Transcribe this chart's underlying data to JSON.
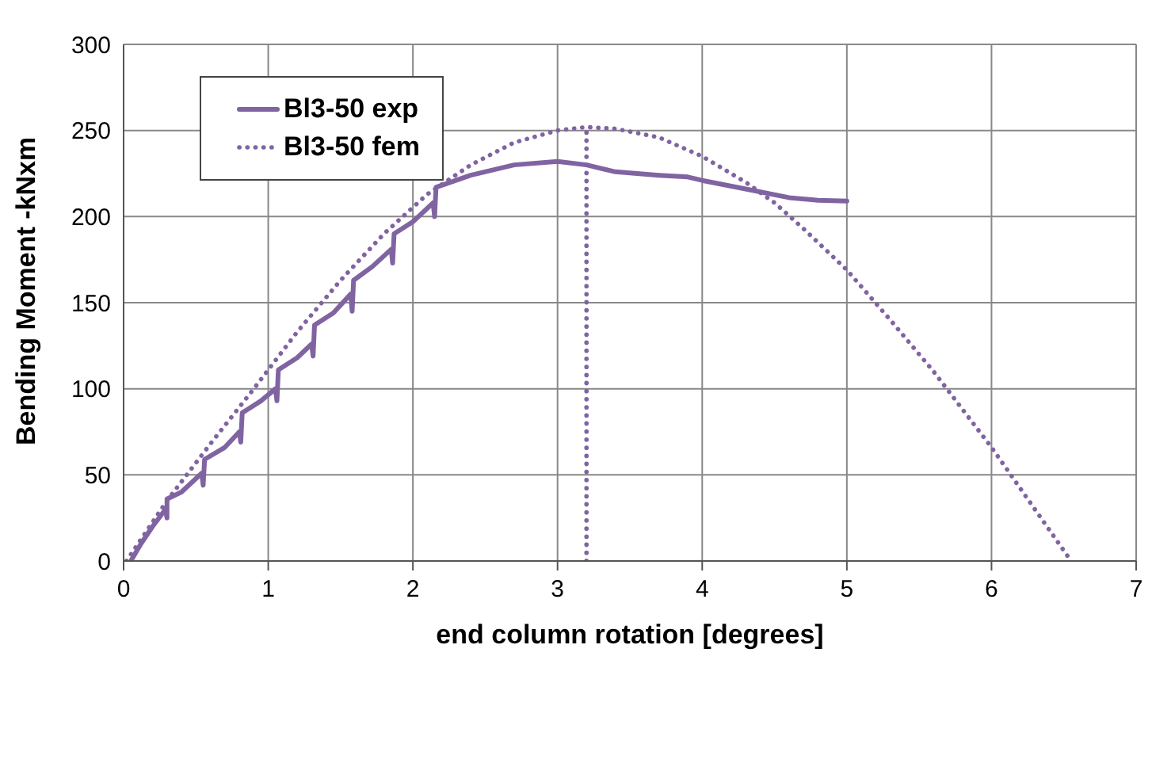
{
  "chart_data": {
    "type": "line",
    "xlabel": "end column rotation [degrees]",
    "ylabel": "Bending Moment -kNxm",
    "xlim": [
      0,
      7
    ],
    "xticks": [
      0,
      1,
      2,
      3,
      4,
      5,
      6,
      7
    ],
    "ylim": [
      0,
      300
    ],
    "yticks": [
      0,
      50,
      100,
      150,
      200,
      250,
      300
    ],
    "grid": true,
    "legend": "top left",
    "marker": "none",
    "series": [
      {
        "name": "Bl3-50 exp",
        "color": "#8064a2",
        "line_style": "solid",
        "x": [
          0.05,
          0.12,
          0.2,
          0.29,
          0.3,
          0.3,
          0.4,
          0.54,
          0.55,
          0.56,
          0.7,
          0.8,
          0.81,
          0.82,
          0.95,
          1.05,
          1.06,
          1.07,
          1.2,
          1.3,
          1.31,
          1.32,
          1.45,
          1.57,
          1.58,
          1.59,
          1.72,
          1.85,
          1.86,
          1.87,
          2.0,
          2.14,
          2.15,
          2.16,
          2.4,
          2.7,
          3.0,
          3.2,
          3.4,
          3.7,
          3.9,
          4.0,
          4.3,
          4.6,
          4.8,
          5.0
        ],
        "values": [
          0,
          10,
          20,
          30,
          25,
          36,
          40,
          51,
          44,
          59,
          66,
          75,
          69,
          86,
          93,
          100,
          93,
          111,
          118,
          126,
          119,
          137,
          144,
          155,
          145,
          163,
          171,
          181,
          173,
          190,
          197,
          208,
          200,
          217,
          224,
          230,
          232,
          230,
          226,
          224,
          223,
          221,
          216,
          211,
          209.5,
          209
        ]
      },
      {
        "name": "Bl3-50 fem",
        "color": "#8064a2",
        "line_style": "dotted",
        "x": [
          0.02,
          0.3,
          0.6,
          0.9,
          1.2,
          1.5,
          1.8,
          2.1,
          2.4,
          2.7,
          3.0,
          3.2,
          3.4,
          3.7,
          4.0,
          4.3,
          4.5,
          4.7,
          5.0,
          5.3,
          5.6,
          6.0,
          6.3,
          6.55
        ],
        "values": [
          0,
          35,
          68,
          100,
          133,
          163,
          190,
          213,
          230,
          243,
          250,
          252,
          251,
          246,
          235,
          220,
          208,
          193,
          169,
          140,
          110,
          66,
          30,
          0
        ]
      },
      {
        "color": "#8064a2",
        "line_style": "dotted",
        "x": [
          3.2,
          3.2
        ],
        "values": [
          0,
          252
        ]
      }
    ]
  }
}
